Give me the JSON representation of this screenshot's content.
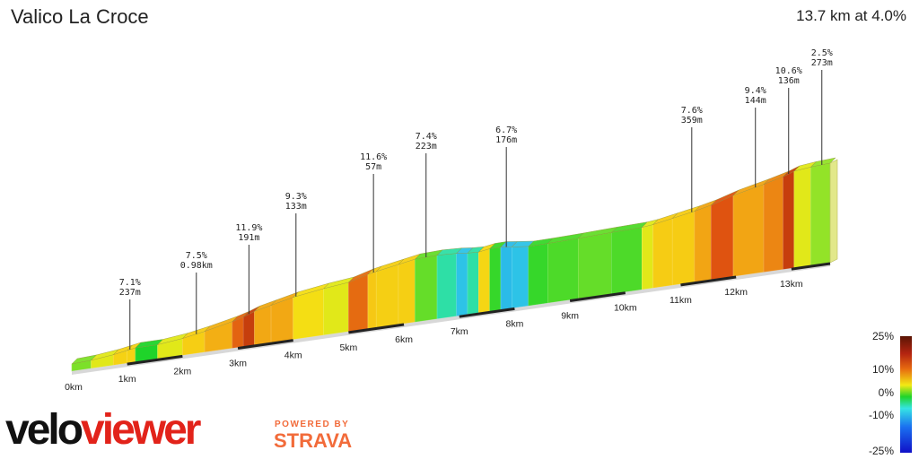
{
  "segment": {
    "name": "Valico La Croce",
    "summary": "13.7 km at 4.0%"
  },
  "branding": {
    "logo_velo": "velo",
    "logo_viewer": "viewer",
    "powered_by": "POWERED BY",
    "strava": "STRAVA"
  },
  "chart_data": {
    "type": "area",
    "title": "Valico La Croce",
    "subtitle": "13.7 km at 4.0%",
    "xlabel": "",
    "ylabel": "",
    "x_unit": "km",
    "x_ticks": [
      "0km",
      "1km",
      "2km",
      "3km",
      "4km",
      "5km",
      "6km",
      "7km",
      "8km",
      "9km",
      "10km",
      "11km",
      "12km",
      "13km"
    ],
    "xlim": [
      0,
      13.7
    ],
    "profile": {
      "distance_km": [
        0,
        0.35,
        0.75,
        1.0,
        1.15,
        1.55,
        2.0,
        2.4,
        2.9,
        3.1,
        3.3,
        3.6,
        4.0,
        4.55,
        5.0,
        5.35,
        5.5,
        5.9,
        6.2,
        6.6,
        6.95,
        7.15,
        7.35,
        7.55,
        7.75,
        7.95,
        8.25,
        8.6,
        9.15,
        9.75,
        10.3,
        10.5,
        10.85,
        11.25,
        11.55,
        11.95,
        12.5,
        12.85,
        13.05,
        13.35,
        13.7
      ],
      "gradient_pct": [
        2.0,
        4.5,
        7.1,
        7.1,
        0.0,
        4.5,
        7.5,
        9.0,
        11.9,
        15.0,
        9.3,
        9.3,
        6.0,
        4.5,
        11.6,
        8.0,
        7.4,
        7.4,
        1.5,
        -2.0,
        -5.0,
        -2.0,
        6.7,
        0.5,
        -5.5,
        -5.0,
        0.5,
        1.0,
        1.5,
        1.0,
        4.5,
        7.6,
        7.6,
        9.4,
        12.5,
        9.4,
        10.6,
        15.0,
        4.5,
        2.5,
        2.5
      ]
    },
    "annotations": [
      {
        "km": 1.05,
        "gradient": "7.1%",
        "length": "237m"
      },
      {
        "km": 2.25,
        "gradient": "7.5%",
        "length": "0.98km"
      },
      {
        "km": 3.2,
        "gradient": "11.9%",
        "length": "191m"
      },
      {
        "km": 4.05,
        "gradient": "9.3%",
        "length": "133m"
      },
      {
        "km": 5.45,
        "gradient": "11.6%",
        "length": "57m"
      },
      {
        "km": 6.4,
        "gradient": "7.4%",
        "length": "223m"
      },
      {
        "km": 7.85,
        "gradient": "6.7%",
        "length": "176m"
      },
      {
        "km": 11.2,
        "gradient": "7.6%",
        "length": "359m"
      },
      {
        "km": 12.35,
        "gradient": "9.4%",
        "length": "144m"
      },
      {
        "km": 12.95,
        "gradient": "10.6%",
        "length": "136m"
      },
      {
        "km": 13.55,
        "gradient": "2.5%",
        "length": "273m"
      }
    ],
    "legend": {
      "title": "",
      "type": "gradient-scale",
      "labels": [
        "25%",
        "10%",
        "0%",
        "-10%",
        "-25%"
      ],
      "values": [
        25,
        10,
        0,
        -10,
        -25
      ],
      "placement": "bottom-right"
    },
    "colors": {
      "flat_green": "#19d42a",
      "yellow": "#f2ee0c",
      "orange": "#f4a018",
      "red": "#d83d0d",
      "cyan": "#35e4e4",
      "blue": "#1414e6"
    }
  }
}
